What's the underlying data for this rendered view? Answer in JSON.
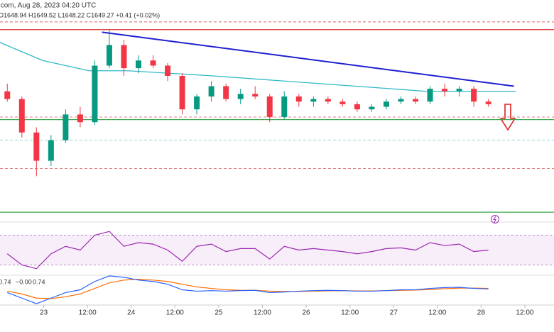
{
  "header": {
    "source": ".com, Aug 28, 2023 04:20 UTC",
    "ohlc": "O1648.94 H1649.52 L1648.22 C1649.27 +0.41 (+0.02%)"
  },
  "chart_data": {
    "type": "candlestick",
    "xlim": [
      12,
      164
    ],
    "ylim": [
      1604,
      1684
    ],
    "xticks": [
      {
        "value": 24,
        "label": "23"
      },
      {
        "value": 36,
        "label": "12:00"
      },
      {
        "value": 48,
        "label": "24"
      },
      {
        "value": 60,
        "label": "12:00"
      },
      {
        "value": 72,
        "label": "25"
      },
      {
        "value": 84,
        "label": "12:00"
      },
      {
        "value": 96,
        "label": "26"
      },
      {
        "value": 108,
        "label": "12:00"
      },
      {
        "value": 120,
        "label": "27"
      },
      {
        "value": 132,
        "label": "12:00"
      },
      {
        "value": 144,
        "label": "28"
      },
      {
        "value": 156,
        "label": "12:00"
      }
    ],
    "up_color": "#089981",
    "down_color": "#f23645",
    "time": [
      14,
      18,
      22,
      26,
      30,
      34,
      38,
      42,
      46,
      50,
      54,
      58,
      62,
      66,
      70,
      74,
      78,
      82,
      86,
      90,
      94,
      98,
      102,
      106,
      110,
      114,
      118,
      122,
      126,
      130,
      134,
      138,
      142,
      146
    ],
    "open": [
      1654,
      1651,
      1638,
      1627,
      1635,
      1645,
      1642,
      1664,
      1672,
      1663,
      1666,
      1664,
      1660,
      1647,
      1652,
      1656,
      1651,
      1653,
      1652,
      1644,
      1652,
      1650,
      1651,
      1650,
      1649,
      1647,
      1648,
      1650,
      1651,
      1650,
      1655,
      1654,
      1655,
      1650
    ],
    "high": [
      1657,
      1652,
      1640,
      1637,
      1647,
      1648,
      1666,
      1678,
      1674,
      1668,
      1668,
      1665,
      1661,
      1653,
      1658,
      1657,
      1655,
      1656,
      1653,
      1654,
      1653,
      1652,
      1652,
      1651,
      1650,
      1649,
      1651,
      1652,
      1652,
      1656,
      1657,
      1656,
      1656,
      1651
    ],
    "low": [
      1650,
      1636,
      1621,
      1625,
      1634,
      1640,
      1641,
      1663,
      1660,
      1661,
      1663,
      1658,
      1645,
      1645,
      1650,
      1650,
      1649,
      1651,
      1642,
      1643,
      1648,
      1648,
      1649,
      1648,
      1646,
      1646,
      1647,
      1649,
      1649,
      1649,
      1652,
      1652,
      1648,
      1648
    ],
    "close": [
      1651,
      1638,
      1627,
      1635,
      1645,
      1642,
      1664,
      1672,
      1663,
      1666,
      1664,
      1660,
      1647,
      1652,
      1656,
      1651,
      1653,
      1652,
      1644,
      1652,
      1650,
      1651,
      1650,
      1649,
      1647,
      1648,
      1650,
      1651,
      1650,
      1655,
      1654,
      1655,
      1650,
      1649
    ],
    "levels": [
      {
        "value": 1681,
        "color": "#e06060",
        "style": "dashed"
      },
      {
        "value": 1678,
        "color": "#d42a2a",
        "style": "solid"
      },
      {
        "value": 1644,
        "color": "#e08080",
        "style": "dashed"
      },
      {
        "value": 1643,
        "color": "#3aa64a",
        "style": "solid"
      },
      {
        "value": 1635,
        "color": "#8fd8d8",
        "style": "dashed"
      },
      {
        "value": 1624,
        "color": "#e08080",
        "style": "dashed"
      },
      {
        "value": 1607,
        "color": "#3aa64a",
        "style": "solid"
      }
    ],
    "trendline": {
      "color": "#2020d0",
      "x": [
        40,
        153
      ],
      "values": [
        1677,
        1656
      ]
    },
    "moving_average": {
      "color": "#30b8c8",
      "x": [
        12,
        23.7,
        36.4,
        47.1,
        58.8,
        70.5,
        90,
        109.6,
        129,
        153.5
      ],
      "values": [
        1673,
        1666,
        1662,
        1662,
        1661,
        1660,
        1658,
        1656,
        1654,
        1654
      ]
    },
    "rsi": {
      "ylim": [
        0,
        100
      ],
      "band": [
        30,
        70
      ],
      "color": "#9c27b0",
      "values": [
        45,
        30,
        25,
        45,
        55,
        50,
        70,
        75,
        55,
        60,
        58,
        50,
        35,
        55,
        58,
        48,
        52,
        52,
        38,
        55,
        50,
        52,
        50,
        48,
        45,
        48,
        52,
        53,
        50,
        60,
        56,
        58,
        48,
        50
      ]
    },
    "macd": {
      "ylim": [
        -6,
        6
      ],
      "legend_values": [
        "0.74",
        "−0.00",
        "0.74"
      ],
      "macd": {
        "color": "#2962ff",
        "values": [
          -1,
          -3,
          -5,
          -3,
          -1,
          0,
          3,
          5,
          4.5,
          3.5,
          3,
          2,
          0,
          -0.5,
          -0.3,
          -0.5,
          -0.3,
          -0.2,
          -1,
          -0.8,
          -0.5,
          -0.3,
          -0.2,
          -0.3,
          -0.5,
          -0.5,
          -0.3,
          0,
          0,
          0.5,
          0.8,
          0.9,
          0.5,
          0.3
        ]
      },
      "signal": {
        "color": "#ff6d00",
        "values": [
          -0.5,
          -1.5,
          -3,
          -3.2,
          -2.5,
          -1.5,
          0.5,
          2.5,
          3.5,
          3.8,
          3.5,
          3,
          2,
          1,
          0.5,
          0,
          -0.2,
          -0.2,
          -0.5,
          -0.6,
          -0.6,
          -0.5,
          -0.4,
          -0.3,
          -0.4,
          -0.4,
          -0.3,
          -0.2,
          -0.1,
          0.1,
          0.4,
          0.6,
          0.6,
          0.5
        ]
      }
    }
  }
}
